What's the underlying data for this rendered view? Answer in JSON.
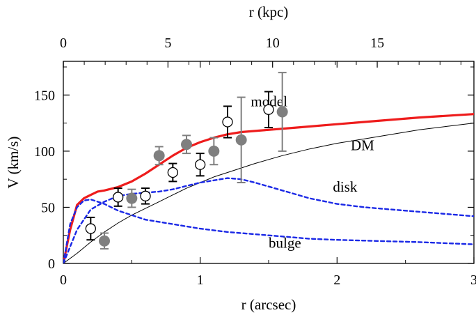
{
  "chart_data": {
    "type": "line",
    "title": "",
    "xlabel": "r (arcsec)",
    "ylabel": "V (km/s)",
    "xlim": [
      0,
      3
    ],
    "ylim": [
      0,
      180
    ],
    "top_axis": {
      "label": "r (kpc)",
      "kpc_per_arcsec": 6.54,
      "ticks": [
        0,
        5,
        10,
        15
      ],
      "tick_labels": [
        "0",
        "5",
        "10",
        "15"
      ]
    },
    "x_ticks": [
      0,
      1,
      2,
      3
    ],
    "x_tick_labels": [
      "0",
      "1",
      "2",
      "3"
    ],
    "y_ticks": [
      0,
      50,
      100,
      150
    ],
    "y_tick_labels": [
      "0",
      "50",
      "100",
      "150"
    ],
    "grid": false,
    "series": [
      {
        "name": "model",
        "label": "model",
        "color": "#ee1c1c",
        "style": "solid-thick",
        "label_at": [
          1.37,
          140
        ],
        "x": [
          0,
          0.05,
          0.1,
          0.15,
          0.2,
          0.25,
          0.3,
          0.4,
          0.5,
          0.6,
          0.7,
          0.8,
          0.9,
          1.0,
          1.1,
          1.2,
          1.3,
          1.5,
          1.7,
          2.0,
          2.3,
          2.6,
          3.0
        ],
        "y": [
          0,
          30,
          52,
          58,
          61,
          64,
          65,
          68,
          73,
          80,
          88,
          96,
          103,
          108,
          112,
          115,
          117,
          119,
          121,
          124,
          127,
          130,
          133
        ]
      },
      {
        "name": "DM",
        "label": "DM",
        "color": "#000000",
        "style": "solid-thin",
        "label_at": [
          2.1,
          101
        ],
        "x": [
          0,
          0.1,
          0.2,
          0.3,
          0.4,
          0.5,
          0.6,
          0.7,
          0.8,
          0.9,
          1.0,
          1.1,
          1.2,
          1.4,
          1.6,
          1.8,
          2.0,
          2.2,
          2.4,
          2.6,
          2.8,
          3.0
        ],
        "y": [
          0,
          9,
          19,
          28,
          36,
          43,
          49,
          55,
          61,
          67,
          72,
          77,
          81,
          89,
          96,
          102,
          107,
          111,
          115,
          119,
          122,
          125
        ]
      },
      {
        "name": "disk",
        "label": "disk",
        "color": "#1a28e6",
        "style": "dotted",
        "label_at": [
          1.97,
          64
        ],
        "x": [
          0,
          0.1,
          0.2,
          0.3,
          0.4,
          0.5,
          0.6,
          0.7,
          0.8,
          0.9,
          1.0,
          1.1,
          1.2,
          1.3,
          1.4,
          1.6,
          1.8,
          2.0,
          2.2,
          2.5,
          2.8,
          3.0
        ],
        "y": [
          0,
          30,
          48,
          55,
          60,
          62,
          63,
          64,
          66,
          69,
          72,
          74,
          76,
          75,
          72,
          65,
          58,
          53,
          50,
          47,
          44,
          42
        ]
      },
      {
        "name": "bulge",
        "label": "bulge",
        "color": "#1a28e6",
        "style": "dotted",
        "label_at": [
          1.5,
          14
        ],
        "x": [
          0,
          0.05,
          0.1,
          0.15,
          0.2,
          0.3,
          0.4,
          0.5,
          0.6,
          0.7,
          0.8,
          1.0,
          1.2,
          1.4,
          1.6,
          1.8,
          2.0,
          2.3,
          2.6,
          3.0
        ],
        "y": [
          0,
          35,
          50,
          56,
          57,
          53,
          47,
          43,
          39,
          37,
          35,
          31,
          28,
          26,
          24,
          22,
          21,
          20,
          19,
          17
        ]
      }
    ],
    "points": [
      {
        "name": "open",
        "marker": "open-circle",
        "color": "#000000",
        "errcolor": "#000000",
        "x": [
          0.2,
          0.4,
          0.6,
          0.8,
          1.0,
          1.2,
          1.5
        ],
        "y": [
          31,
          59,
          60,
          81,
          88,
          126,
          137
        ],
        "err": [
          10,
          8,
          7,
          8,
          10,
          14,
          16
        ]
      },
      {
        "name": "filled",
        "marker": "filled-circle",
        "color": "#7f7f7f",
        "errcolor": "#7f7f7f",
        "x": [
          0.3,
          0.5,
          0.7,
          0.9,
          1.1,
          1.3,
          1.6
        ],
        "y": [
          20,
          58,
          96,
          106,
          100,
          110,
          135
        ],
        "err": [
          7,
          8,
          8,
          8,
          12,
          38,
          35
        ]
      }
    ]
  }
}
